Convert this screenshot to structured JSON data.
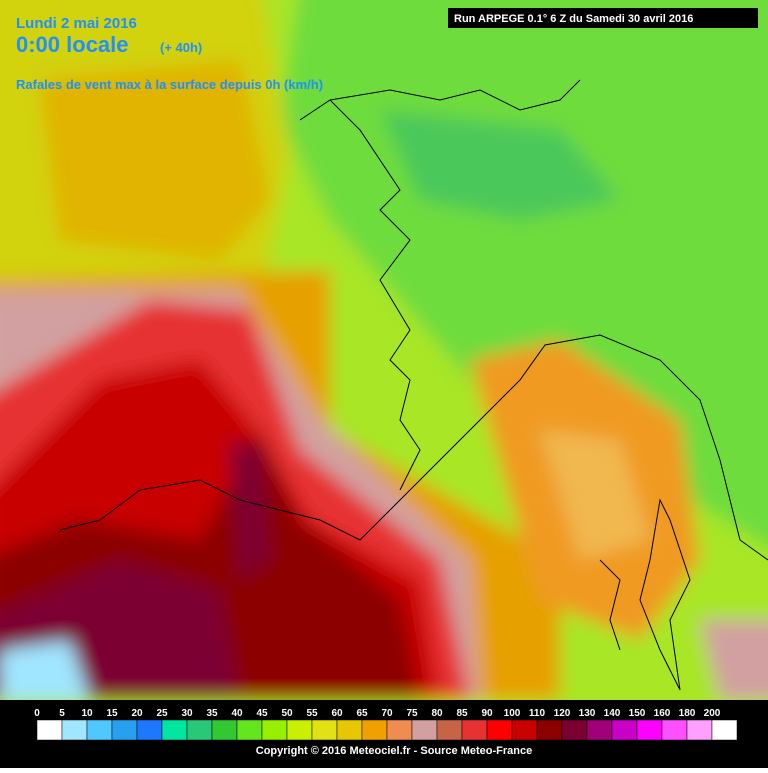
{
  "header": {
    "date": "Lundi 2 mai 2016",
    "time": "0:00 locale",
    "lead": "(+ 40h)",
    "parameter": "Rafales de vent max à la surface depuis 0h (km/h)",
    "run": "Run ARPEGE 0.1° 6 Z du Samedi 30 avril 2016"
  },
  "legend": {
    "levels": [
      {
        "value": 0,
        "color": "#ffffff"
      },
      {
        "value": 5,
        "color": "#a0e6ff"
      },
      {
        "value": 10,
        "color": "#50c8ff"
      },
      {
        "value": 15,
        "color": "#28a0f0"
      },
      {
        "value": 20,
        "color": "#1e78ff"
      },
      {
        "value": 25,
        "color": "#00e6a0"
      },
      {
        "value": 30,
        "color": "#28c878"
      },
      {
        "value": 35,
        "color": "#32c832"
      },
      {
        "value": 40,
        "color": "#64e61e"
      },
      {
        "value": 45,
        "color": "#96f000"
      },
      {
        "value": 50,
        "color": "#c8f000"
      },
      {
        "value": 55,
        "color": "#e1e114"
      },
      {
        "value": 60,
        "color": "#e6c800"
      },
      {
        "value": 65,
        "color": "#f0a000"
      },
      {
        "value": 70,
        "color": "#f08c50"
      },
      {
        "value": 75,
        "color": "#d2a0a0"
      },
      {
        "value": 80,
        "color": "#c86446"
      },
      {
        "value": 85,
        "color": "#e63232"
      },
      {
        "value": 90,
        "color": "#ff0000"
      },
      {
        "value": 100,
        "color": "#c80000"
      },
      {
        "value": 110,
        "color": "#8c0000"
      },
      {
        "value": 120,
        "color": "#7d0032"
      },
      {
        "value": 130,
        "color": "#a00078"
      },
      {
        "value": 140,
        "color": "#c800c8"
      },
      {
        "value": 150,
        "color": "#ff00ff"
      },
      {
        "value": 160,
        "color": "#ff50ff"
      },
      {
        "value": 180,
        "color": "#ffa0ff"
      },
      {
        "value": 200,
        "color": "#ffffff"
      }
    ]
  },
  "footer": {
    "copyright": "Copyright © 2016 Meteociel.fr - Source Meteo-France"
  }
}
